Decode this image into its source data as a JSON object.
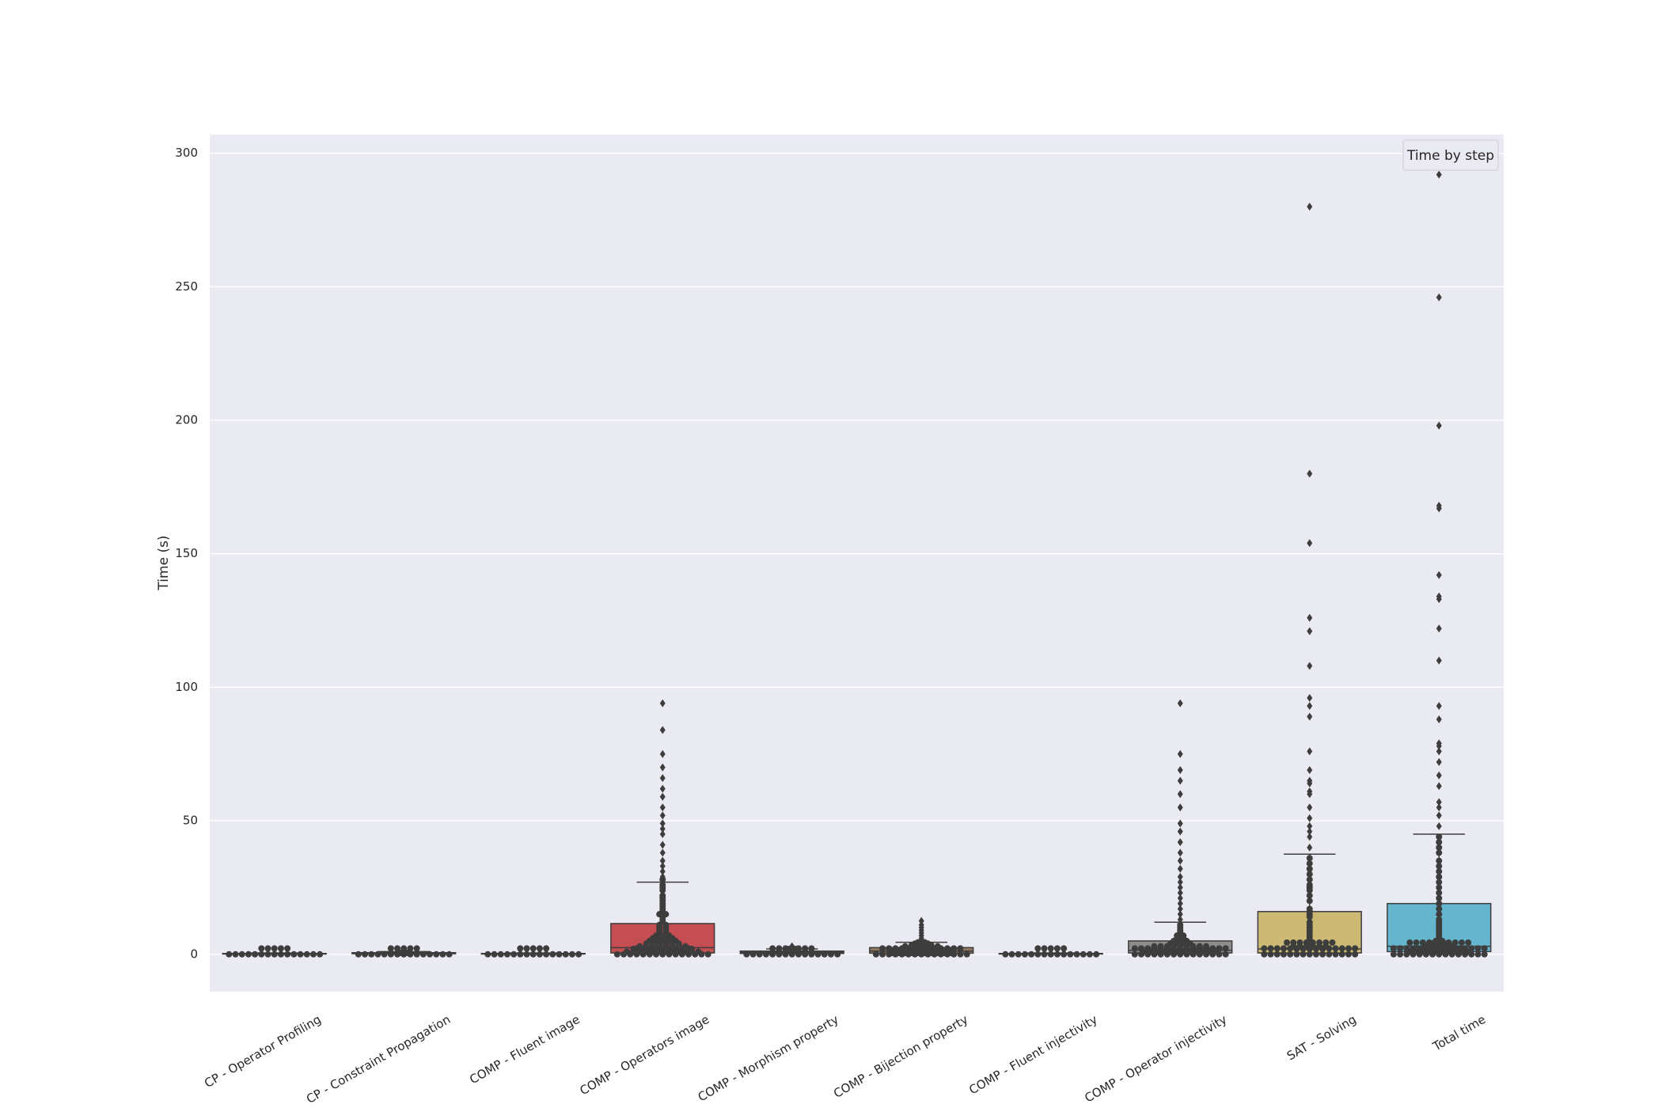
{
  "chart_data": {
    "type": "box",
    "title": "",
    "xlabel": "",
    "ylabel": "Time (s)",
    "ylim": [
      -14,
      307
    ],
    "yticks": [
      0,
      50,
      100,
      150,
      200,
      250,
      300
    ],
    "grid": true,
    "legend": {
      "title": "Time by step",
      "placement": "top-right"
    },
    "categories": [
      "CP - Operator Profiling",
      "CP - Constraint Propagation",
      "COMP - Fluent image",
      "COMP - Operators image",
      "COMP - Morphism property",
      "COMP - Bijection property",
      "COMP - Fluent injectivity",
      "COMP - Operator injectivity",
      "SAT - Solving",
      "Total time"
    ],
    "colors": [
      "#4c72b0",
      "#dd8452",
      "#55a868",
      "#c44e52",
      "#8172b3",
      "#937860",
      "#da8bc3",
      "#8c8c8c",
      "#ccb974",
      "#64b5cd"
    ],
    "boxes": [
      {
        "q1": 0.1,
        "median": 0.2,
        "q3": 0.3,
        "whisker_low": 0.0,
        "whisker_high": 0.5,
        "outliers": []
      },
      {
        "q1": 0.2,
        "median": 0.4,
        "q3": 0.6,
        "whisker_low": 0.0,
        "whisker_high": 1.0,
        "outliers": []
      },
      {
        "q1": 0.1,
        "median": 0.2,
        "q3": 0.3,
        "whisker_low": 0.0,
        "whisker_high": 0.5,
        "outliers": []
      },
      {
        "q1": 0.5,
        "median": 2.5,
        "q3": 11.5,
        "whisker_low": 0.0,
        "whisker_high": 27,
        "outliers": [
          29,
          31,
          33,
          35,
          38,
          41,
          45,
          47,
          49,
          52,
          55,
          59,
          62,
          66,
          70,
          75,
          84,
          94
        ]
      },
      {
        "q1": 0.3,
        "median": 0.7,
        "q3": 1.2,
        "whisker_low": 0.0,
        "whisker_high": 2.0,
        "outliers": [
          2.5,
          3
        ]
      },
      {
        "q1": 0.4,
        "median": 1.2,
        "q3": 2.5,
        "whisker_low": 0.0,
        "whisker_high": 4.5,
        "outliers": [
          5,
          6,
          7,
          8,
          9,
          10,
          11,
          12.5
        ]
      },
      {
        "q1": 0.1,
        "median": 0.2,
        "q3": 0.3,
        "whisker_low": 0.0,
        "whisker_high": 0.5,
        "outliers": []
      },
      {
        "q1": 0.5,
        "median": 1.5,
        "q3": 5.0,
        "whisker_low": 0.0,
        "whisker_high": 12,
        "outliers": [
          13,
          15,
          17,
          19,
          21,
          23,
          25,
          27,
          29,
          32,
          35,
          38,
          42,
          46,
          49,
          55,
          60,
          65,
          69,
          75,
          94
        ]
      },
      {
        "q1": 0.5,
        "median": 2.0,
        "q3": 16.0,
        "whisker_low": 0.0,
        "whisker_high": 37.5,
        "outliers": [
          40,
          44,
          46,
          48,
          51,
          55,
          60,
          61,
          64,
          65,
          69,
          76,
          89,
          93,
          96,
          108,
          121,
          126,
          154,
          180,
          280
        ]
      },
      {
        "q1": 1.0,
        "median": 3.0,
        "q3": 19.0,
        "whisker_low": 0.0,
        "whisker_high": 45,
        "outliers": [
          48,
          52,
          55,
          57,
          63,
          67,
          72,
          76,
          78,
          79,
          88,
          93,
          110,
          122,
          133,
          134,
          142,
          167,
          168,
          198,
          246,
          292
        ]
      }
    ],
    "swarm": [
      [
        0,
        0,
        0,
        0,
        0,
        0,
        0,
        0,
        0,
        0,
        0,
        0,
        0,
        0,
        0,
        0,
        0,
        0,
        0,
        0
      ],
      [
        0,
        0,
        0,
        0,
        0,
        0,
        0,
        0,
        0,
        0,
        0,
        0,
        0,
        0,
        0,
        0,
        0,
        0,
        0,
        0,
        0.5,
        0.5,
        1
      ],
      [
        0,
        0,
        0,
        0,
        0,
        0,
        0,
        0,
        0,
        0,
        0,
        0,
        0,
        0,
        0,
        0,
        0,
        0,
        0,
        0
      ],
      [
        0,
        0,
        0,
        0,
        0,
        0,
        0,
        0,
        0,
        0,
        0,
        0,
        0,
        0,
        0,
        0,
        0,
        0,
        0,
        0,
        0,
        0,
        0,
        0,
        1,
        1,
        1,
        1,
        1,
        1,
        1,
        1,
        1,
        1,
        1,
        1,
        2,
        2,
        2,
        2,
        2,
        2,
        2,
        2,
        2,
        2,
        3,
        3,
        3,
        3,
        3,
        3,
        3,
        3,
        4,
        4,
        4,
        4,
        4,
        4,
        5,
        5,
        5,
        5,
        5,
        6,
        6,
        6,
        6,
        7,
        7,
        7,
        8,
        8,
        9,
        9,
        10,
        10,
        11,
        11,
        12,
        13,
        14,
        15,
        15,
        16,
        17,
        18,
        19,
        20,
        21,
        22,
        24,
        25,
        26,
        28
      ],
      [
        0,
        0,
        0,
        0,
        0,
        0,
        0,
        0,
        0,
        0,
        0,
        0,
        0,
        0,
        0,
        0,
        0,
        0,
        0,
        0,
        0,
        0,
        0.5,
        0.5,
        0.5,
        0.5,
        0.5,
        1,
        1,
        1,
        1,
        1,
        1.5,
        1.5,
        2,
        2,
        2.5
      ],
      [
        0,
        0,
        0,
        0,
        0,
        0,
        0,
        0,
        0,
        0,
        0,
        0,
        0,
        0,
        0,
        0,
        0,
        0,
        0,
        0,
        0,
        0,
        0,
        0,
        0,
        0,
        0,
        0,
        0.5,
        0.5,
        0.5,
        0.5,
        0.5,
        0.5,
        0.5,
        0.5,
        0.5,
        0.5,
        1,
        1,
        1,
        1,
        1,
        1,
        1,
        1,
        1,
        1,
        1.5,
        1.5,
        1.5,
        1.5,
        1.5,
        1.5,
        1.5,
        1.5,
        2,
        2,
        2,
        2,
        2,
        2,
        2,
        2.5,
        2.5,
        2.5,
        2.5,
        2.5,
        2.5,
        3,
        3,
        3,
        3,
        3,
        3,
        3.5,
        3.5,
        3.5,
        3.5,
        4,
        4,
        4,
        4.5,
        4.5
      ],
      [
        0,
        0,
        0,
        0,
        0,
        0,
        0,
        0,
        0,
        0,
        0,
        0,
        0,
        0,
        0,
        0,
        0,
        0,
        0,
        0
      ],
      [
        0,
        0,
        0,
        0,
        0,
        0,
        0,
        0,
        0,
        0,
        0,
        0,
        0,
        0,
        0,
        0,
        0,
        0,
        0,
        0,
        0,
        0,
        0,
        0,
        0,
        0,
        0,
        0,
        0,
        0,
        1,
        1,
        1,
        1,
        1,
        1,
        1,
        1,
        1,
        1,
        1,
        1,
        2,
        2,
        2,
        2,
        2,
        2,
        2,
        2,
        2,
        2,
        2,
        3,
        3,
        3,
        3,
        3,
        3,
        3,
        3,
        3,
        4,
        4,
        4,
        4,
        5,
        5,
        5,
        6,
        6,
        7,
        7,
        8,
        9,
        10,
        11
      ],
      [
        0,
        0,
        0,
        0,
        0,
        0,
        0,
        0,
        0,
        0,
        0,
        0,
        0,
        0,
        0,
        0,
        0,
        0,
        0,
        0,
        0,
        0,
        0,
        0,
        0,
        0,
        0,
        0,
        0,
        0,
        0,
        0,
        0,
        0,
        0,
        0,
        0,
        0,
        2,
        2,
        2,
        2,
        2,
        3,
        3,
        3,
        3,
        3,
        3,
        4,
        5,
        6,
        7,
        8,
        9,
        10,
        11,
        12,
        14,
        15,
        16,
        17,
        20,
        22,
        24,
        25,
        26,
        28,
        30,
        32,
        34,
        36
      ],
      [
        0,
        0,
        0,
        0,
        0,
        0,
        0,
        0,
        0,
        0,
        0,
        0,
        0,
        0,
        0,
        0,
        0,
        0,
        0,
        0,
        0,
        0,
        0,
        0,
        0,
        0,
        0,
        0,
        0,
        0,
        0,
        0,
        0,
        0,
        0,
        0,
        0,
        0,
        0,
        0,
        1,
        1,
        1,
        1,
        1,
        1,
        1,
        1,
        1,
        1,
        2,
        2,
        2,
        2,
        2,
        2,
        2,
        2,
        3,
        3,
        3,
        3,
        3,
        4,
        4,
        4,
        5,
        5,
        6,
        7,
        8,
        9,
        10,
        11,
        12,
        13,
        15,
        17,
        19,
        21,
        23,
        25,
        27,
        29,
        31,
        33,
        35,
        38,
        40,
        42,
        44
      ]
    ]
  }
}
